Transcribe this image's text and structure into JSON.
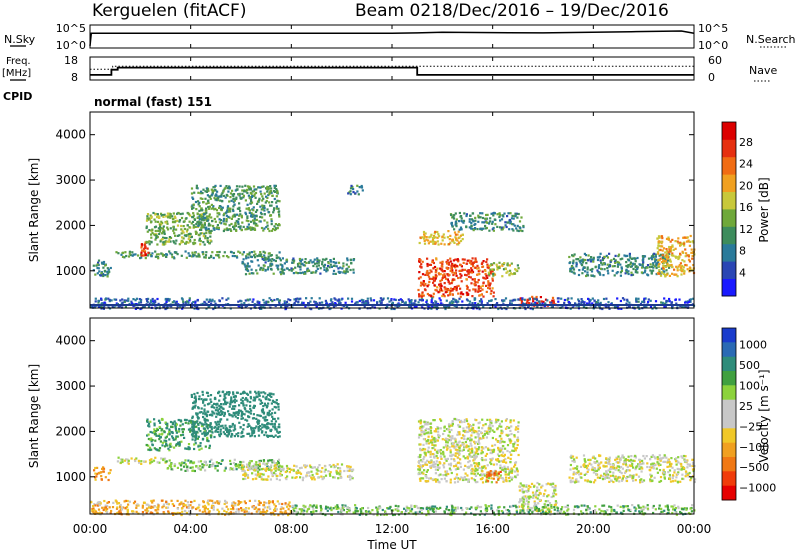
{
  "header": {
    "station": "Kerguelen (fitACF)",
    "beam": "Beam 02",
    "date_range": "18/Dec/2016 – 19/Dec/2016"
  },
  "time_axis": {
    "title": "Time UT",
    "tick_labels": [
      "00:00",
      "04:00",
      "08:00",
      "12:00",
      "16:00",
      "20:00",
      "00:00"
    ],
    "hours": [
      0,
      4,
      8,
      12,
      16,
      20,
      24
    ]
  },
  "noise_panel": {
    "left_label": "N.Sky",
    "left_ticks": [
      "10^5",
      "10^0"
    ],
    "right_label": "N.Search",
    "right_ticks": [
      "10^5",
      "10^0"
    ]
  },
  "freq_panel": {
    "left_label_1": "Freq.",
    "left_label_2": "[MHz]",
    "left_ticks": [
      "18",
      "8"
    ],
    "right_label": "Nave",
    "right_ticks": [
      "60",
      "0"
    ]
  },
  "cpid_panel": {
    "label": "CPID",
    "program": "normal (fast) 151"
  },
  "range_axis": {
    "title": "Slant Range [km]",
    "tick_labels": [
      "1000",
      "2000",
      "3000",
      "4000"
    ],
    "values": [
      1000,
      2000,
      3000,
      4000
    ],
    "range": [
      180,
      4500
    ]
  },
  "power_colorbar": {
    "title": "Power [dB]",
    "tick_labels": [
      "4",
      "8",
      "12",
      "16",
      "20",
      "24",
      "28"
    ],
    "colors": [
      "#1a1aff",
      "#2a46b4",
      "#2a7a9a",
      "#3d8c5c",
      "#6fa83a",
      "#c8c83a",
      "#f0a020",
      "#f06c14",
      "#e63010",
      "#dc0000"
    ]
  },
  "velocity_colorbar": {
    "title": "Velocity [m s⁻¹]",
    "tick_labels": [
      "1000",
      "500",
      "100",
      "25",
      "−25",
      "−100",
      "−500",
      "−1000"
    ],
    "colors": [
      "#1a3ccc",
      "#2a6ab4",
      "#2e8c7a",
      "#40a040",
      "#8cd23c",
      "#c8c8c8",
      "#c8c8c8",
      "#f0c828",
      "#f0a020",
      "#f07814",
      "#f03c0a",
      "#e60000"
    ]
  },
  "chart_data": [
    {
      "type": "line",
      "title": "Noise",
      "series": [
        {
          "name": "N.Sky",
          "x_hours": [
            0,
            0.05,
            6,
            12,
            13,
            14,
            16,
            18,
            21.5,
            23.5,
            24
          ],
          "values": [
            1,
            10000,
            10000,
            10000,
            12000,
            20000,
            15000,
            12000,
            30000,
            50000,
            10000
          ]
        }
      ]
    },
    {
      "type": "line",
      "title": "Freq./Nave",
      "series": [
        {
          "name": "Freq. [MHz]",
          "x_hours": [
            0,
            0.85,
            0.85,
            1.1,
            1.1,
            13.0,
            13.0,
            24
          ],
          "values": [
            10.2,
            10.2,
            12.5,
            12.5,
            13.4,
            13.4,
            10.2,
            10.2
          ]
        },
        {
          "name": "Nave",
          "x_hours": [
            0,
            0.9,
            0.9,
            24
          ],
          "values": [
            28,
            28,
            36,
            36
          ]
        }
      ]
    },
    {
      "type": "heatmap",
      "title": "Power [dB]",
      "xlabel": "Time UT",
      "ylabel": "Slant Range [km]",
      "xlim_hours": [
        0,
        24
      ],
      "ylim_km": [
        180,
        4500
      ],
      "echo_regions": [
        {
          "t": [
            0.1,
            0.8
          ],
          "r": [
            900,
            1250
          ],
          "power_db": 10
        },
        {
          "t": [
            1.0,
            3.0
          ],
          "r": [
            1300,
            1450
          ],
          "power_db": 12
        },
        {
          "t": [
            2.0,
            2.3
          ],
          "r": [
            1350,
            1650
          ],
          "power_db": 26
        },
        {
          "t": [
            2.2,
            4.8
          ],
          "r": [
            1600,
            2300
          ],
          "power_db": 14
        },
        {
          "t": [
            4.0,
            7.5
          ],
          "r": [
            1900,
            2900
          ],
          "power_db": 12
        },
        {
          "t": [
            3.0,
            7.5
          ],
          "r": [
            1300,
            1450
          ],
          "power_db": 12
        },
        {
          "t": [
            6.0,
            10.5
          ],
          "r": [
            950,
            1300
          ],
          "power_db": 10
        },
        {
          "t": [
            10.2,
            10.8
          ],
          "r": [
            2700,
            2900
          ],
          "power_db": 10
        },
        {
          "t": [
            13.0,
            16.0
          ],
          "r": [
            450,
            1300
          ],
          "power_db": 26
        },
        {
          "t": [
            13.0,
            14.8
          ],
          "r": [
            1600,
            1900
          ],
          "power_db": 20
        },
        {
          "t": [
            14.3,
            17.2
          ],
          "r": [
            1900,
            2300
          ],
          "power_db": 10
        },
        {
          "t": [
            15.8,
            17.0
          ],
          "r": [
            900,
            1200
          ],
          "power_db": 16
        },
        {
          "t": [
            17.0,
            18.5
          ],
          "r": [
            250,
            450
          ],
          "power_db": 28
        },
        {
          "t": [
            19.0,
            23.0
          ],
          "r": [
            900,
            1400
          ],
          "power_db": 10
        },
        {
          "t": [
            22.5,
            24.0
          ],
          "r": [
            900,
            1800
          ],
          "power_db": 20
        },
        {
          "t": [
            0.0,
            24.0
          ],
          "r": [
            180,
            420
          ],
          "power_db": 6
        }
      ]
    },
    {
      "type": "heatmap",
      "title": "Velocity [m s⁻¹]",
      "xlabel": "Time UT",
      "ylabel": "Slant Range [km]",
      "xlim_hours": [
        0,
        24
      ],
      "ylim_km": [
        180,
        4500
      ],
      "echo_regions": [
        {
          "t": [
            0.1,
            0.8
          ],
          "r": [
            950,
            1250
          ],
          "velocity": -100
        },
        {
          "t": [
            1.0,
            3.0
          ],
          "r": [
            1300,
            1450
          ],
          "velocity": 0
        },
        {
          "t": [
            2.2,
            4.8
          ],
          "r": [
            1600,
            2300
          ],
          "velocity": 100
        },
        {
          "t": [
            4.0,
            7.5
          ],
          "r": [
            1900,
            2900
          ],
          "velocity": 200
        },
        {
          "t": [
            3.0,
            7.5
          ],
          "r": [
            1150,
            1400
          ],
          "velocity": 50
        },
        {
          "t": [
            6.0,
            10.5
          ],
          "r": [
            950,
            1300
          ],
          "velocity": 0
        },
        {
          "t": [
            13.0,
            17.0
          ],
          "r": [
            900,
            2300
          ],
          "velocity": 0
        },
        {
          "t": [
            15.7,
            16.3
          ],
          "r": [
            900,
            1150
          ],
          "velocity": -300
        },
        {
          "t": [
            17.0,
            18.5
          ],
          "r": [
            250,
            900
          ],
          "velocity": 0
        },
        {
          "t": [
            19.0,
            24.0
          ],
          "r": [
            900,
            1500
          ],
          "velocity": 0
        },
        {
          "t": [
            0.0,
            8.0
          ],
          "r": [
            180,
            500
          ],
          "velocity": -60
        },
        {
          "t": [
            8.0,
            24.0
          ],
          "r": [
            180,
            400
          ],
          "velocity": 60
        }
      ]
    }
  ]
}
